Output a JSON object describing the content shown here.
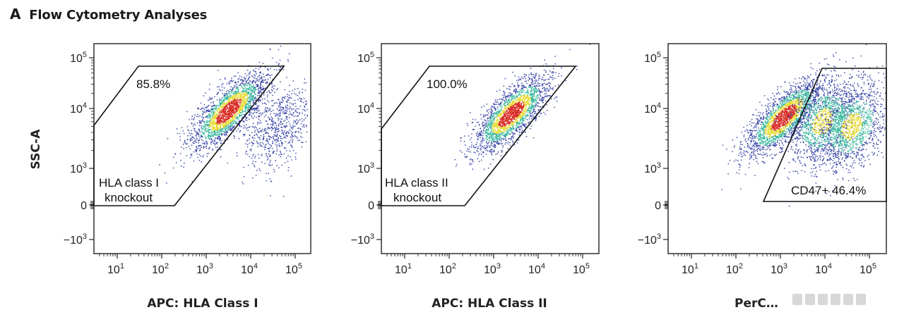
{
  "header": {
    "letter": "A",
    "title": "Flow Cytometry Analyses"
  },
  "chart_data": [
    {
      "type": "scatter",
      "title": "",
      "xlabel": "APC: HLA Class I",
      "ylabel": "SSC-A",
      "x_scale": "biexponential",
      "y_scale": "biexponential",
      "x_ticks": [
        "10^1",
        "10^2",
        "10^3",
        "10^4",
        "10^5"
      ],
      "y_ticks": [
        "10^5",
        "10^4",
        "10^3",
        "0",
        "-10^3"
      ],
      "gate": {
        "name": "HLA class I knockout",
        "percent": "85.8%"
      },
      "populations": [
        {
          "x_center": 3200,
          "y_center": 9000,
          "density": "high"
        },
        {
          "x_center": 40000,
          "y_center": 5000,
          "density": "low"
        }
      ]
    },
    {
      "type": "scatter",
      "title": "",
      "xlabel": "APC: HLA Class II",
      "ylabel": "",
      "x_scale": "biexponential",
      "y_scale": "biexponential",
      "x_ticks": [
        "10^1",
        "10^2",
        "10^3",
        "10^4",
        "10^5"
      ],
      "y_ticks": [
        "10^5",
        "10^4",
        "10^3",
        "0",
        "-10^3"
      ],
      "gate": {
        "name": "HLA class II knockout",
        "percent": "100.0%"
      },
      "populations": [
        {
          "x_center": 2500,
          "y_center": 8000,
          "density": "high"
        }
      ]
    },
    {
      "type": "scatter",
      "title": "",
      "xlabel": "PerC…",
      "ylabel": "",
      "x_scale": "biexponential",
      "y_scale": "biexponential",
      "x_ticks": [
        "10^1",
        "10^2",
        "10^3",
        "10^4",
        "10^5"
      ],
      "y_ticks": [
        "10^5",
        "10^4",
        "10^3",
        "0",
        "-10^3"
      ],
      "gate": {
        "name": "CD47+",
        "percent": "46.4%"
      },
      "populations": [
        {
          "x_center": 1200,
          "y_center": 7000,
          "density": "high"
        },
        {
          "x_center": 9000,
          "y_center": 6000,
          "density": "medium"
        },
        {
          "x_center": 40000,
          "y_center": 5000,
          "density": "medium"
        }
      ]
    }
  ],
  "labels": {
    "p1_gate_line1": "HLA class I",
    "p1_gate_line2": "knockout",
    "p1_percent": "85.8%",
    "p2_gate_line1": "HLA class II",
    "p2_gate_line2": "knockout",
    "p2_percent": "100.0%",
    "p3_gate": "CD47+ 46.4%",
    "y_title": "SSC-A",
    "x_title_1": "APC: HLA Class I",
    "x_title_2": "APC: HLA Class II",
    "x_title_3": "PerC…"
  },
  "colors": {
    "density_low": "#2b3aa0",
    "density_mid": "#2fb59a",
    "density_high_yellow": "#e6d92a",
    "density_peak": "#d7261e",
    "frame": "#222222"
  }
}
